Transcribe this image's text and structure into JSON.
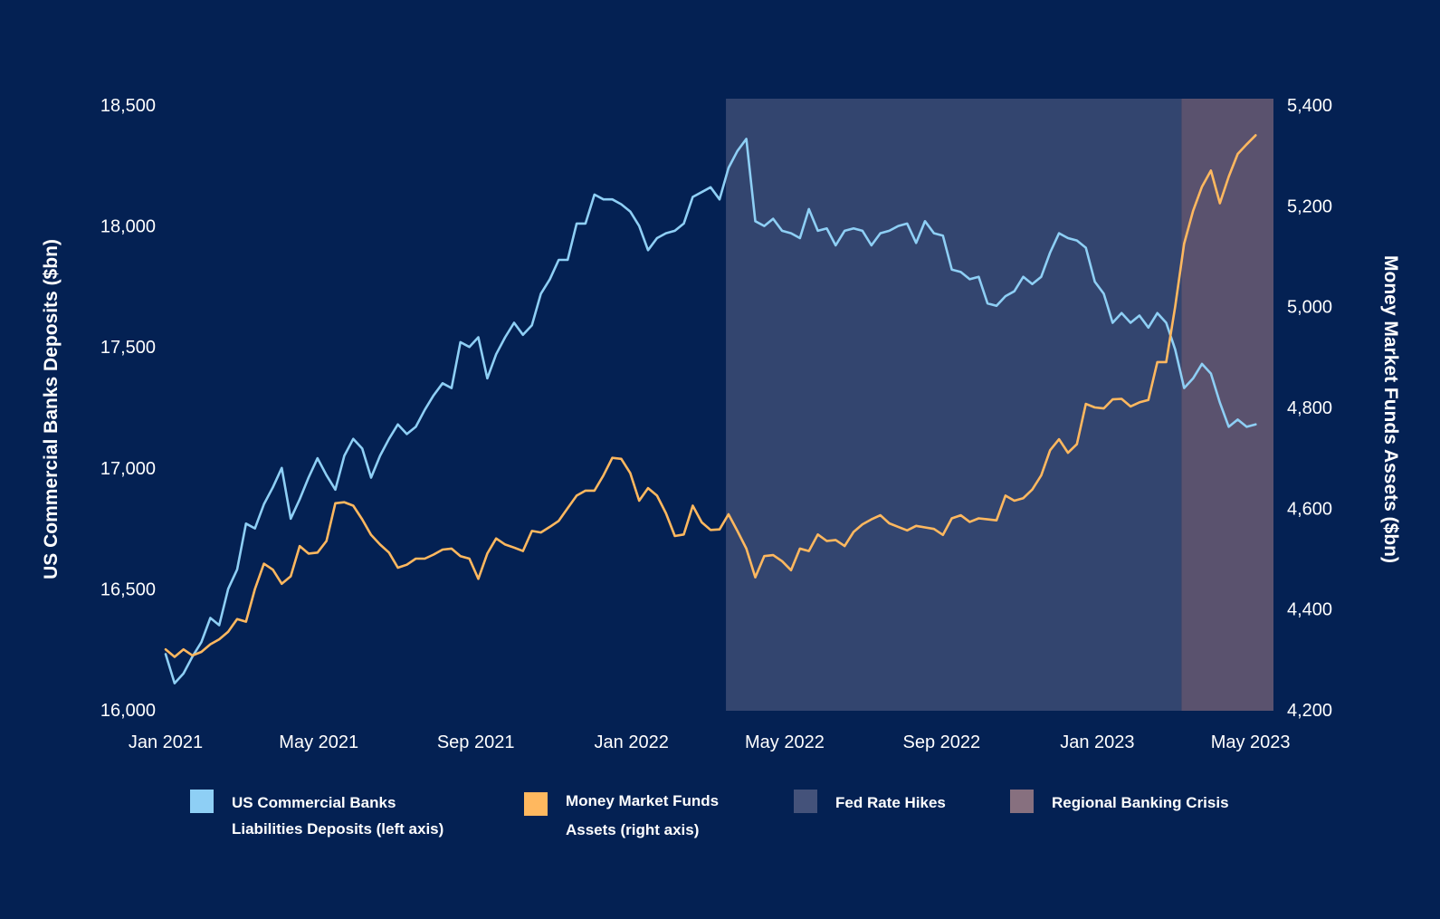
{
  "chart_data": {
    "type": "line",
    "x_dates": [
      "2021-01-01",
      "2021-01-08",
      "2021-01-15",
      "2021-01-22",
      "2021-01-29",
      "2021-02-05",
      "2021-02-12",
      "2021-02-19",
      "2021-02-26",
      "2021-03-05",
      "2021-03-12",
      "2021-03-19",
      "2021-03-26",
      "2021-04-02",
      "2021-04-09",
      "2021-04-16",
      "2021-04-23",
      "2021-04-30",
      "2021-05-07",
      "2021-05-14",
      "2021-05-21",
      "2021-05-28",
      "2021-06-04",
      "2021-06-11",
      "2021-06-18",
      "2021-06-25",
      "2021-07-02",
      "2021-07-09",
      "2021-07-16",
      "2021-07-23",
      "2021-07-30",
      "2021-08-06",
      "2021-08-13",
      "2021-08-20",
      "2021-08-27",
      "2021-09-03",
      "2021-09-10",
      "2021-09-17",
      "2021-09-24",
      "2021-10-01",
      "2021-10-08",
      "2021-10-15",
      "2021-10-22",
      "2021-10-29",
      "2021-11-05",
      "2021-11-12",
      "2021-11-19",
      "2021-11-26",
      "2021-12-03",
      "2021-12-10",
      "2021-12-17",
      "2021-12-24",
      "2021-12-31",
      "2022-01-07",
      "2022-01-14",
      "2022-01-21",
      "2022-01-28",
      "2022-02-04",
      "2022-02-11",
      "2022-02-18",
      "2022-02-25",
      "2022-03-04",
      "2022-03-11",
      "2022-03-18",
      "2022-03-25",
      "2022-04-01",
      "2022-04-08",
      "2022-04-15",
      "2022-04-22",
      "2022-04-29",
      "2022-05-06",
      "2022-05-13",
      "2022-05-20",
      "2022-05-27",
      "2022-06-03",
      "2022-06-10",
      "2022-06-17",
      "2022-06-24",
      "2022-07-01",
      "2022-07-08",
      "2022-07-15",
      "2022-07-22",
      "2022-07-29",
      "2022-08-05",
      "2022-08-12",
      "2022-08-19",
      "2022-08-26",
      "2022-09-02",
      "2022-09-09",
      "2022-09-16",
      "2022-09-23",
      "2022-09-30",
      "2022-10-07",
      "2022-10-14",
      "2022-10-21",
      "2022-10-28",
      "2022-11-04",
      "2022-11-11",
      "2022-11-18",
      "2022-11-25",
      "2022-12-02",
      "2022-12-09",
      "2022-12-16",
      "2022-12-23",
      "2022-12-30",
      "2023-01-06",
      "2023-01-13",
      "2023-01-20",
      "2023-01-27",
      "2023-02-03",
      "2023-02-10",
      "2023-02-17",
      "2023-02-24",
      "2023-03-03",
      "2023-03-10",
      "2023-03-17",
      "2023-03-24",
      "2023-03-31",
      "2023-04-07",
      "2023-04-14",
      "2023-04-21",
      "2023-04-28",
      "2023-05-05",
      "2023-05-12",
      "2023-05-19"
    ],
    "series": [
      {
        "name": "US Commercial Banks Liabilities Deposits (left axis)",
        "axis": "left",
        "color": "#8ECFF5",
        "values": [
          16230,
          16110,
          16150,
          16220,
          16280,
          16380,
          16350,
          16500,
          16580,
          16770,
          16750,
          16850,
          16920,
          17000,
          16790,
          16870,
          16960,
          17040,
          16970,
          16910,
          17050,
          17120,
          17080,
          16960,
          17050,
          17120,
          17180,
          17140,
          17170,
          17240,
          17300,
          17350,
          17330,
          17520,
          17500,
          17540,
          17370,
          17470,
          17540,
          17600,
          17550,
          17590,
          17720,
          17780,
          17860,
          17860,
          18010,
          18010,
          18130,
          18110,
          18110,
          18090,
          18060,
          18000,
          17900,
          17950,
          17970,
          17980,
          18010,
          18120,
          18140,
          18160,
          18110,
          18240,
          18310,
          18360,
          18020,
          18000,
          18030,
          17980,
          17970,
          17950,
          18070,
          17980,
          17990,
          17920,
          17980,
          17990,
          17980,
          17920,
          17970,
          17980,
          18000,
          18010,
          17930,
          18020,
          17970,
          17960,
          17820,
          17810,
          17780,
          17790,
          17680,
          17670,
          17710,
          17730,
          17790,
          17760,
          17790,
          17890,
          17970,
          17950,
          17940,
          17910,
          17770,
          17720,
          17600,
          17640,
          17600,
          17630,
          17580,
          17640,
          17600,
          17490,
          17330,
          17370,
          17430,
          17390,
          17270,
          17170,
          17200,
          17170,
          17180
        ]
      },
      {
        "name": "Money Market Funds Assets (right axis)",
        "axis": "right",
        "color": "#FFB85F",
        "values": [
          4320,
          4305,
          4320,
          4308,
          4315,
          4330,
          4340,
          4355,
          4380,
          4375,
          4440,
          4490,
          4478,
          4450,
          4465,
          4525,
          4510,
          4512,
          4535,
          4610,
          4612,
          4605,
          4578,
          4547,
          4528,
          4512,
          4482,
          4488,
          4500,
          4500,
          4508,
          4518,
          4520,
          4505,
          4500,
          4460,
          4510,
          4540,
          4528,
          4522,
          4515,
          4555,
          4552,
          4563,
          4575,
          4600,
          4625,
          4635,
          4635,
          4665,
          4700,
          4698,
          4670,
          4615,
          4640,
          4625,
          4590,
          4545,
          4548,
          4605,
          4572,
          4557,
          4558,
          4588,
          4555,
          4520,
          4463,
          4505,
          4507,
          4495,
          4477,
          4520,
          4515,
          4548,
          4535,
          4537,
          4525,
          4553,
          4568,
          4578,
          4586,
          4570,
          4563,
          4556,
          4565,
          4562,
          4559,
          4547,
          4580,
          4586,
          4573,
          4580,
          4578,
          4576,
          4625,
          4615,
          4620,
          4637,
          4665,
          4715,
          4737,
          4710,
          4727,
          4807,
          4800,
          4798,
          4816,
          4817,
          4802,
          4810,
          4815,
          4890,
          4890,
          5000,
          5125,
          5190,
          5238,
          5270,
          5205,
          5258,
          5303,
          5322,
          5340
        ]
      }
    ],
    "x_ticks": [
      "Jan 2021",
      "May 2021",
      "Sep 2021",
      "Jan 2022",
      "May 2022",
      "Sep 2022",
      "Jan 2023",
      "May 2023"
    ],
    "x_tick_dates": [
      "2021-01-01",
      "2021-05-01",
      "2021-09-01",
      "2022-01-01",
      "2022-05-01",
      "2022-09-01",
      "2023-01-01",
      "2023-05-01"
    ],
    "x_range": [
      "2021-01-01",
      "2023-05-19"
    ],
    "left_axis": {
      "label": "US Commercial Banks Deposits ($bn)",
      "range": [
        16000,
        18500
      ],
      "ticks": [
        "16,000",
        "16,500",
        "17,000",
        "17,500",
        "18,000",
        "18,500"
      ],
      "tick_values": [
        16000,
        16500,
        17000,
        17500,
        18000,
        18500
      ]
    },
    "right_axis": {
      "label": "Money Market Funds Assets ($bn)",
      "range": [
        4200,
        5400
      ],
      "ticks": [
        "4,200",
        "4,400",
        "4,600",
        "4,800",
        "5,000",
        "5,200",
        "5,400"
      ],
      "tick_values": [
        4200,
        4400,
        4600,
        4800,
        5000,
        5200,
        5400
      ]
    },
    "shaded_regions": [
      {
        "name": "Fed Rate Hikes",
        "start": "2022-03-16",
        "end": "2023-03-08",
        "color": "#33456F"
      },
      {
        "name": "Regional Banking Crisis",
        "start": "2023-03-08",
        "end": "2023-05-19",
        "color": "#5A526E"
      }
    ],
    "legend": [
      {
        "label": "US Commercial Banks\nLiabilities Deposits (left axis)",
        "color": "#8ECFF5"
      },
      {
        "label": "Money Market Funds\nAssets (right axis)",
        "color": "#FFB85F"
      },
      {
        "label": "Fed Rate Hikes",
        "color": "#44527A"
      },
      {
        "label": "Regional Banking Crisis",
        "color": "#87707F"
      }
    ],
    "legend_position": "bottom",
    "grid": false
  }
}
